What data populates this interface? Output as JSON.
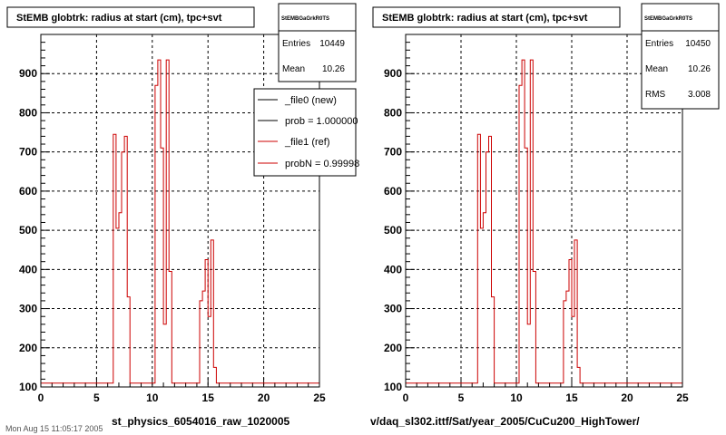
{
  "palette": {
    "frame": "#000000",
    "new_hist": "#000000",
    "ref_hist": "#cc0000",
    "grid": "#000000",
    "background": "#ffffff"
  },
  "chart_data": [
    {
      "type": "histogram",
      "title": "StEMB globtrk: radius at start (cm), tpc+svt",
      "xlabel": "st_physics_6054016_raw_1020005",
      "ylabel": "",
      "xlim": [
        0,
        25
      ],
      "ylim": [
        100,
        1000
      ],
      "log_y": false,
      "grid": true,
      "xticks": [
        0,
        5,
        10,
        15,
        20,
        25
      ],
      "yticks": [
        100,
        200,
        300,
        400,
        500,
        600,
        700,
        800,
        900
      ],
      "stats": {
        "header": "StEMBGaGrkR0TS",
        "rows": [
          {
            "label": "Entries",
            "value": "10449"
          },
          {
            "label": "Mean",
            "value": "10.26"
          }
        ]
      },
      "legend": {
        "placement": "top-right",
        "entries": [
          {
            "label": "_file0 (new)",
            "color": "#000000"
          },
          {
            "label": "prob = 1.000000",
            "color": "#000000"
          },
          {
            "label": "_file1 (ref)",
            "color": "#cc0000"
          },
          {
            "label": "probN = 0.99998",
            "color": "#cc0000"
          }
        ]
      },
      "bin_width": 0.25,
      "series": [
        {
          "name": "_file1 (ref)",
          "color": "#cc0000",
          "points": [
            [
              0,
              110
            ],
            [
              6.25,
              110
            ],
            [
              6.5,
              745
            ],
            [
              6.75,
              505
            ],
            [
              7.0,
              545
            ],
            [
              7.25,
              700
            ],
            [
              7.5,
              740
            ],
            [
              7.75,
              330
            ],
            [
              8.0,
              110
            ],
            [
              10.0,
              110
            ],
            [
              10.25,
              870
            ],
            [
              10.5,
              935
            ],
            [
              10.75,
              710
            ],
            [
              11.0,
              260
            ],
            [
              11.25,
              935
            ],
            [
              11.5,
              395
            ],
            [
              11.75,
              110
            ],
            [
              14.0,
              110
            ],
            [
              14.25,
              320
            ],
            [
              14.5,
              345
            ],
            [
              14.75,
              425
            ],
            [
              15.0,
              280
            ],
            [
              15.25,
              475
            ],
            [
              15.5,
              150
            ],
            [
              15.75,
              110
            ],
            [
              25,
              110
            ]
          ]
        }
      ]
    },
    {
      "type": "histogram",
      "title": "StEMB globtrk: radius at start (cm), tpc+svt",
      "xlabel": "v/daq_sl302.ittf/Sat/year_2005/CuCu200_HighTower/",
      "ylabel": "",
      "xlim": [
        0,
        25
      ],
      "ylim": [
        100,
        1000
      ],
      "log_y": false,
      "grid": true,
      "xticks": [
        0,
        5,
        10,
        15,
        20,
        25
      ],
      "yticks": [
        100,
        200,
        300,
        400,
        500,
        600,
        700,
        800,
        900
      ],
      "stats": {
        "header": "StEMBGaGrkR0TS",
        "rows": [
          {
            "label": "Entries",
            "value": "10450"
          },
          {
            "label": "Mean",
            "value": "10.26"
          },
          {
            "label": "RMS",
            "value": "3.008"
          }
        ]
      },
      "legend": null,
      "bin_width": 0.25,
      "series": [
        {
          "name": "",
          "color": "#cc0000",
          "points": [
            [
              0,
              110
            ],
            [
              6.25,
              110
            ],
            [
              6.5,
              745
            ],
            [
              6.75,
              505
            ],
            [
              7.0,
              545
            ],
            [
              7.25,
              700
            ],
            [
              7.5,
              740
            ],
            [
              7.75,
              330
            ],
            [
              8.0,
              110
            ],
            [
              10.0,
              110
            ],
            [
              10.25,
              870
            ],
            [
              10.5,
              935
            ],
            [
              10.75,
              710
            ],
            [
              11.0,
              260
            ],
            [
              11.25,
              935
            ],
            [
              11.5,
              395
            ],
            [
              11.75,
              110
            ],
            [
              14.0,
              110
            ],
            [
              14.25,
              320
            ],
            [
              14.5,
              345
            ],
            [
              14.75,
              425
            ],
            [
              15.0,
              280
            ],
            [
              15.25,
              475
            ],
            [
              15.5,
              150
            ],
            [
              15.75,
              110
            ],
            [
              25,
              110
            ]
          ]
        }
      ]
    }
  ],
  "footer_text": "Mon Aug 15 11:05:17 2005"
}
